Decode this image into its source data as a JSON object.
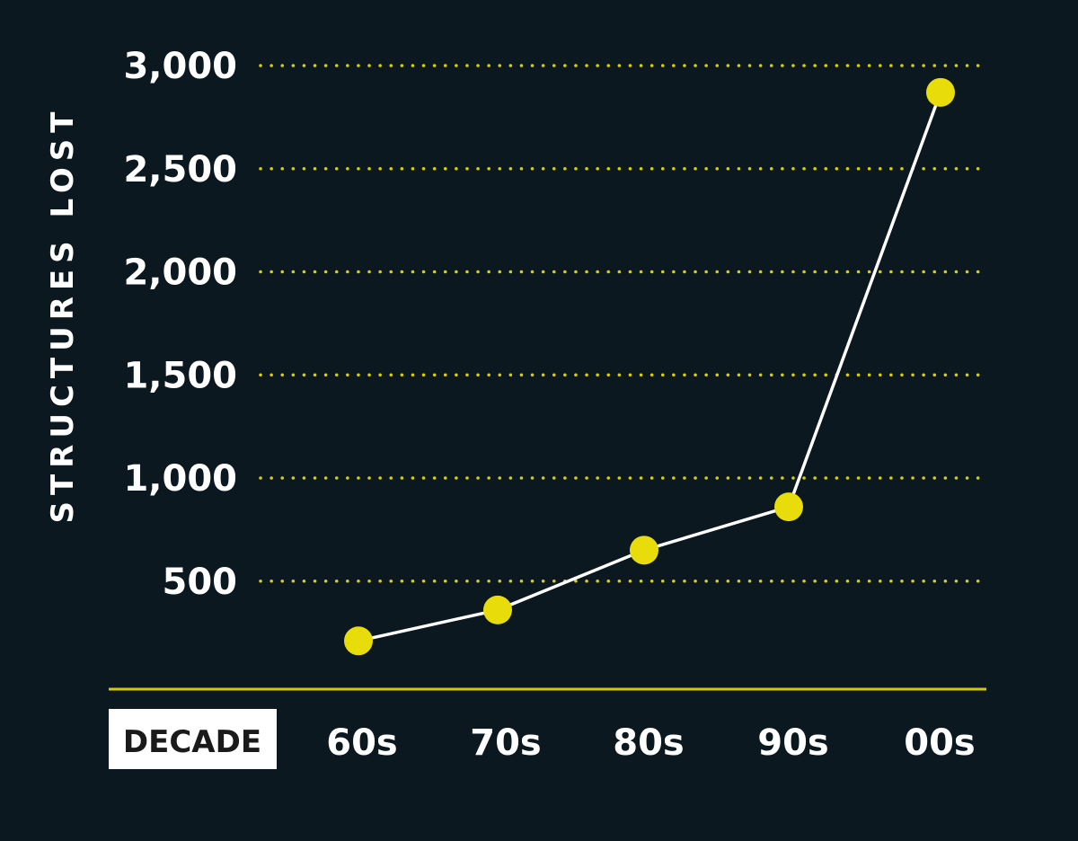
{
  "chart_data": {
    "type": "line",
    "title": "",
    "xlabel": "DECADE",
    "ylabel": "STRUCTURES LOST",
    "categories": [
      "60s",
      "70s",
      "80s",
      "90s",
      "00s"
    ],
    "series": [
      {
        "values": [
          210,
          360,
          650,
          860,
          2870
        ]
      }
    ],
    "yticks": [
      500,
      1000,
      1500,
      2000,
      2500,
      3000
    ],
    "ytick_labels": [
      "500",
      "1,000",
      "1,500",
      "2,000",
      "2,500",
      "3,000"
    ],
    "ylim": [
      0,
      3000
    ],
    "grid": "horizontal dotted",
    "legend": "none",
    "colors": {
      "background": "#0b1820",
      "marker": "#e8dc0a",
      "line": "#ffffff",
      "gridline": "#d8d000",
      "baseline": "#d8c800",
      "text": "#ffffff",
      "label_box": "#ffffff",
      "label_box_text": "#1a1a1a"
    }
  }
}
